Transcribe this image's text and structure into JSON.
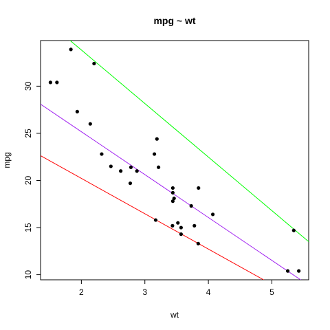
{
  "chart_data": {
    "type": "scatter",
    "title": "mpg ~ wt",
    "x_label": "wt",
    "y_label": "mpg",
    "x": [
      2.62,
      2.875,
      2.32,
      3.215,
      3.44,
      3.46,
      3.57,
      3.19,
      3.15,
      3.44,
      3.44,
      4.07,
      3.73,
      3.78,
      5.25,
      5.424,
      5.345,
      2.2,
      1.615,
      1.835,
      2.465,
      3.52,
      3.435,
      3.84,
      3.845,
      1.935,
      2.14,
      1.513,
      3.17,
      2.77,
      3.57,
      2.78
    ],
    "values": [
      21.0,
      21.0,
      22.8,
      21.4,
      18.7,
      18.1,
      14.3,
      24.4,
      22.8,
      19.2,
      17.8,
      16.4,
      17.3,
      15.2,
      10.4,
      10.4,
      14.7,
      32.4,
      30.4,
      33.9,
      21.5,
      15.5,
      15.2,
      13.3,
      19.2,
      27.3,
      26.0,
      30.4,
      15.8,
      19.7,
      15.0,
      21.4
    ],
    "color": "#000000",
    "lines": [
      {
        "color": "#ff0000",
        "intercept": 27.72,
        "slope": -3.75
      },
      {
        "color": "#a020f0",
        "intercept": 34.27,
        "slope": -4.55
      },
      {
        "color": "#00ff00",
        "intercept": 45.2,
        "slope": -5.68
      }
    ],
    "xlim": [
      1.35728,
      5.57972
    ],
    "ylim": [
      9.46,
      34.84
    ],
    "xticks": [
      2,
      3,
      4,
      5
    ],
    "yticks": [
      10,
      15,
      20,
      25,
      30
    ]
  }
}
